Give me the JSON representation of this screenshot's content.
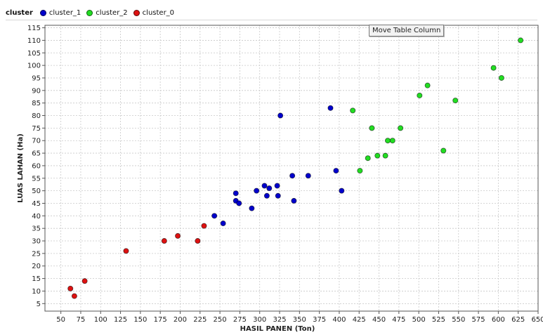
{
  "legend": {
    "title": "cluster",
    "items": [
      {
        "label": "cluster_1",
        "color": "#0000cc"
      },
      {
        "label": "cluster_2",
        "color": "#22dd22"
      },
      {
        "label": "cluster_0",
        "color": "#dd1111"
      }
    ]
  },
  "tooltip": "Move Table Column",
  "chart_data": {
    "type": "scatter",
    "xlabel": "HASIL PANEN (Ton)",
    "ylabel": "LUAS LAHAN (Ha)",
    "xlim": [
      30,
      650
    ],
    "ylim": [
      2,
      116
    ],
    "x_ticks": [
      50,
      75,
      100,
      125,
      150,
      175,
      200,
      225,
      250,
      275,
      300,
      325,
      350,
      375,
      400,
      425,
      450,
      475,
      500,
      525,
      550,
      575,
      600,
      625,
      650
    ],
    "y_ticks": [
      5,
      10,
      15,
      20,
      25,
      30,
      35,
      40,
      45,
      50,
      55,
      60,
      65,
      70,
      75,
      80,
      85,
      90,
      95,
      100,
      105,
      110,
      115
    ],
    "grid": true,
    "legend_position": "top-left",
    "series": [
      {
        "name": "cluster_1",
        "color": "#0000cc",
        "points": [
          [
            326,
            80
          ],
          [
            389,
            83
          ],
          [
            396,
            58
          ],
          [
            403,
            50
          ],
          [
            361,
            56
          ],
          [
            341,
            56
          ],
          [
            343,
            46
          ],
          [
            322,
            52
          ],
          [
            323,
            48
          ],
          [
            312,
            51
          ],
          [
            309,
            48
          ],
          [
            306,
            52
          ],
          [
            296,
            50
          ],
          [
            290,
            43
          ],
          [
            270,
            49
          ],
          [
            270,
            46
          ],
          [
            274,
            45
          ],
          [
            254,
            37
          ],
          [
            243,
            40
          ]
        ]
      },
      {
        "name": "cluster_2",
        "color": "#22dd22",
        "points": [
          [
            628,
            110
          ],
          [
            594,
            99
          ],
          [
            604,
            95
          ],
          [
            511,
            92
          ],
          [
            501,
            88
          ],
          [
            546,
            86
          ],
          [
            417,
            82
          ],
          [
            441,
            75
          ],
          [
            477,
            75
          ],
          [
            461,
            70
          ],
          [
            467,
            70
          ],
          [
            531,
            66
          ],
          [
            448,
            64
          ],
          [
            458,
            64
          ],
          [
            436,
            63
          ],
          [
            426,
            58
          ]
        ]
      },
      {
        "name": "cluster_0",
        "color": "#dd1111",
        "points": [
          [
            230,
            36
          ],
          [
            197,
            32
          ],
          [
            180,
            30
          ],
          [
            222,
            30
          ],
          [
            132,
            26
          ],
          [
            80,
            14
          ],
          [
            62,
            11
          ],
          [
            67,
            8
          ]
        ]
      }
    ]
  }
}
